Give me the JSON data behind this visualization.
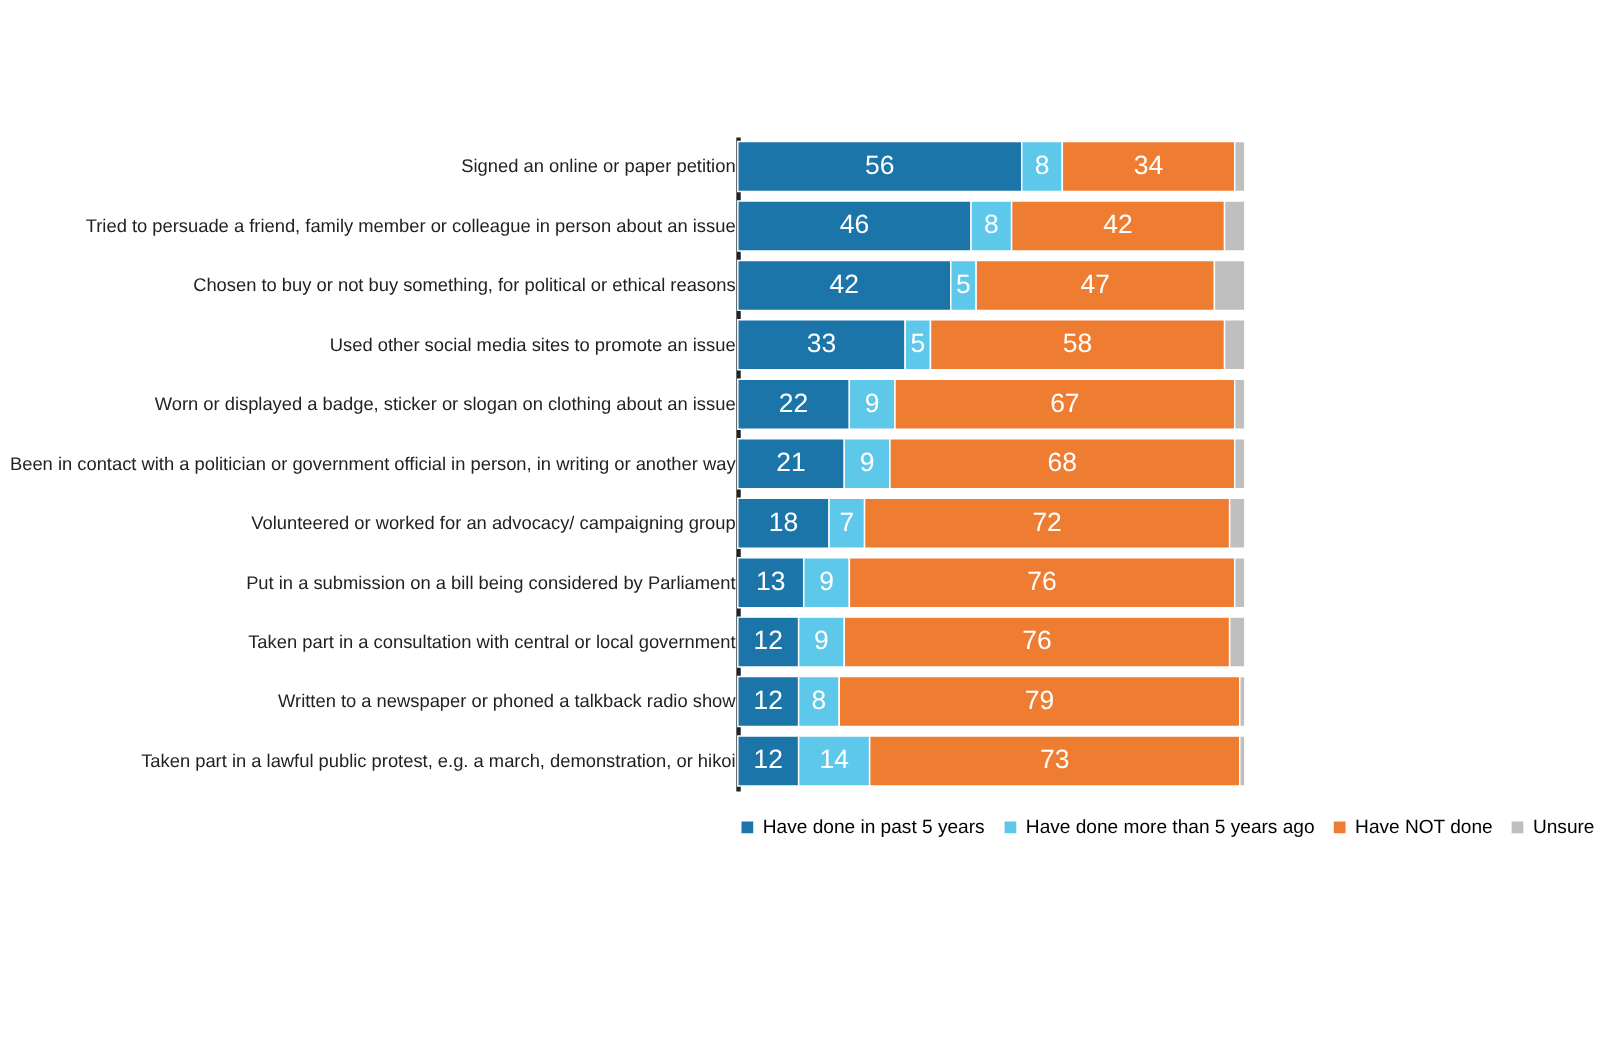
{
  "chart_data": {
    "type": "bar",
    "orientation": "horizontal",
    "stacked": true,
    "legend": "bottom",
    "grid": false,
    "xlim": [
      0,
      100
    ],
    "tick_labels": "y",
    "categories": [
      "Signed an online or paper petition",
      "Tried to persuade a friend, family member or colleague in person about an issue",
      "Chosen to buy or not buy something, for political or ethical reasons",
      "Used other social media sites to promote an issue",
      "Worn or displayed a badge, sticker or slogan on clothing about an issue",
      "Been in contact with a politician or government official in person, in writing or another way",
      "Volunteered or worked for an advocacy/ campaigning group",
      "Put in a submission on a bill being considered by Parliament",
      "Taken part in a consultation with central or local government",
      "Written to a newspaper or phoned a talkback radio show",
      "Taken part in a lawful public protest, e.g. a march, demonstration, or hikoi"
    ],
    "series": [
      {
        "name": "Have done in past 5 years",
        "color": "#1b75a9",
        "values": [
          56,
          46,
          42,
          33,
          22,
          21,
          18,
          13,
          12,
          12,
          12
        ],
        "value_labels": [
          "56",
          "46",
          "42",
          "33",
          "22",
          "21",
          "18",
          "13",
          "12",
          "12",
          "12"
        ]
      },
      {
        "name": "Have done more than 5 years ago",
        "color": "#5ec8ea",
        "values": [
          8,
          8,
          5,
          5,
          9,
          9,
          7,
          9,
          9,
          8,
          14
        ],
        "value_labels": [
          "8",
          "8",
          "5",
          "5",
          "9",
          "9",
          "7",
          "9",
          "9",
          "8",
          "14"
        ]
      },
      {
        "name": "Have NOT done",
        "color": "#ee7d32",
        "values": [
          34,
          42,
          47,
          58,
          67,
          68,
          72,
          76,
          76,
          79,
          73
        ],
        "value_labels": [
          "34",
          "42",
          "47",
          "58",
          "67",
          "68",
          "72",
          "76",
          "76",
          "79",
          "73"
        ]
      },
      {
        "name": "Unsure",
        "color": "#bfbfbf",
        "values": [
          2,
          4,
          6,
          4,
          2,
          2,
          3,
          2,
          3,
          1,
          1
        ],
        "value_labels": [
          null,
          null,
          null,
          null,
          null,
          null,
          null,
          null,
          null,
          null,
          null
        ]
      }
    ]
  }
}
